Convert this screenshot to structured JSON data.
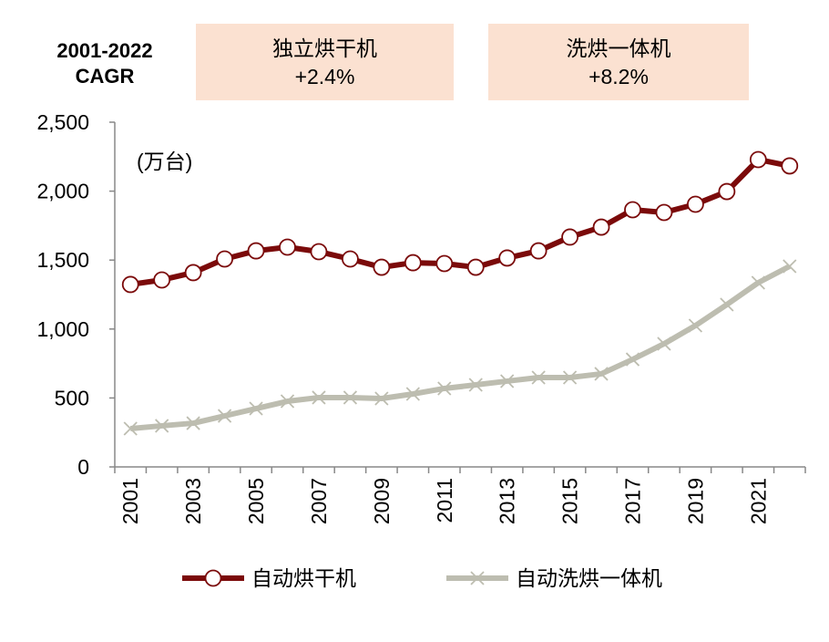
{
  "header": {
    "cagr_title_line1": "2001-2022",
    "cagr_title_line2": "CAGR",
    "boxes": [
      {
        "label": "独立烘干机",
        "value": "+2.4%"
      },
      {
        "label": "洗烘一体机",
        "value": "+8.2%"
      }
    ]
  },
  "chart_data": {
    "type": "line",
    "unit_label": "(万台)",
    "x": [
      2001,
      2002,
      2003,
      2004,
      2005,
      2006,
      2007,
      2008,
      2009,
      2010,
      2011,
      2012,
      2013,
      2014,
      2015,
      2016,
      2017,
      2018,
      2019,
      2020,
      2021,
      2022
    ],
    "x_tick_labels": [
      "2001",
      "2003",
      "2005",
      "2007",
      "2009",
      "2011",
      "2013",
      "2015",
      "2017",
      "2019",
      "2021"
    ],
    "ylim": [
      0,
      2500
    ],
    "y_ticks": [
      "0",
      "500",
      "1,000",
      "1,500",
      "2,000",
      "2,500"
    ],
    "grid": false,
    "legend_position": "bottom",
    "series": [
      {
        "name": "自动烘干机",
        "color": "#7B0A0A",
        "marker": "circle",
        "values": [
          1323,
          1356,
          1409,
          1508,
          1567,
          1594,
          1561,
          1508,
          1448,
          1481,
          1475,
          1448,
          1515,
          1567,
          1667,
          1739,
          1865,
          1845,
          1905,
          1997,
          2229,
          2183
        ]
      },
      {
        "name": "自动洗烘一体机",
        "color": "#BDBDB0",
        "marker": "x",
        "values": [
          278,
          298,
          317,
          370,
          423,
          476,
          503,
          503,
          496,
          529,
          569,
          595,
          622,
          648,
          648,
          675,
          780,
          893,
          1025,
          1177,
          1336,
          1455
        ]
      }
    ]
  }
}
